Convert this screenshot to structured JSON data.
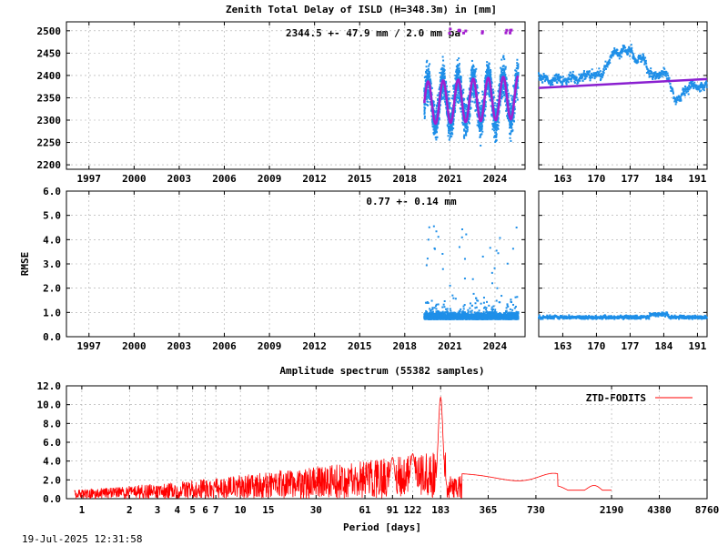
{
  "footer": {
    "timestamp": "19-Jul-2025 12:31:58"
  },
  "colors": {
    "points": "#1e8fe8",
    "model": "#a31fcf",
    "spectrum": "#ff0000",
    "trend": "#8a1fd0"
  },
  "chart_data": [
    {
      "id": "ztd",
      "type": "scatter",
      "title": "Zenith Total Delay of ISLD (H=348.3m) in [mm]",
      "annotation": "2344.5 +-  47.9 mm /  2.0 mm pa",
      "xlabel": "",
      "ylabel": "",
      "xlim": [
        1995.5,
        2026.0
      ],
      "ylim": [
        2190,
        2520
      ],
      "x_ticks": [
        "1997",
        "2000",
        "2003",
        "2006",
        "2009",
        "2012",
        "2015",
        "2018",
        "2021",
        "2024"
      ],
      "y_ticks": [
        "2200",
        "2250",
        "2300",
        "2350",
        "2400",
        "2450",
        "2500"
      ],
      "data_span": [
        2019.3,
        2025.55
      ],
      "seasonal": {
        "mean": 2344.5,
        "amplitude": 47.9,
        "trend_mm_per_year": 2.0,
        "period_years": 1.0
      },
      "grid": true
    },
    {
      "id": "ztd-zoom",
      "type": "scatter",
      "xlim": [
        158,
        193
      ],
      "ylim": [
        2190,
        2520
      ],
      "x_ticks": [
        "163",
        "170",
        "177",
        "184",
        "191"
      ],
      "trend_line": {
        "x": [
          158,
          193
        ],
        "y": [
          2372,
          2392
        ]
      },
      "grid": true
    },
    {
      "id": "rmse",
      "type": "scatter",
      "annotation": "0.77 +-  0.14 mm",
      "ylabel": "RMSE",
      "xlim": [
        1995.5,
        2026.0
      ],
      "ylim": [
        0.0,
        6.0
      ],
      "x_ticks": [
        "1997",
        "2000",
        "2003",
        "2006",
        "2009",
        "2012",
        "2015",
        "2018",
        "2021",
        "2024"
      ],
      "y_ticks": [
        "0.0",
        "1.0",
        "2.0",
        "3.0",
        "4.0",
        "5.0",
        "6.0"
      ],
      "data_span": [
        2019.3,
        2025.55
      ],
      "mean": 0.77,
      "sd": 0.14,
      "grid": true
    },
    {
      "id": "rmse-zoom",
      "type": "scatter",
      "xlim": [
        158,
        193
      ],
      "ylim": [
        0.0,
        6.0
      ],
      "x_ticks": [
        "163",
        "170",
        "177",
        "184",
        "191"
      ],
      "grid": true
    },
    {
      "id": "spectrum",
      "type": "line",
      "title": "Amplitude spectrum (55382 samples)",
      "xlabel": "Period [days]",
      "xscale": "log",
      "xlim": [
        0.8,
        8760
      ],
      "ylim": [
        0.0,
        12.0
      ],
      "x_ticks": [
        "1",
        "2",
        "3",
        "4",
        "5",
        "6",
        "7",
        "10",
        "15",
        "30",
        "61",
        "91",
        "122",
        "183",
        "365",
        "730",
        "2190",
        "4380",
        "8760"
      ],
      "y_ticks": [
        "0.0",
        "2.0",
        "4.0",
        "6.0",
        "8.0",
        "10.0",
        "12.0"
      ],
      "legend": {
        "label": "ZTD-FODITS",
        "position": "top-right"
      },
      "peaks": [
        {
          "period": 183,
          "amplitude": 10.8
        },
        {
          "period": 122,
          "amplitude": 4.8
        },
        {
          "period": 91,
          "amplitude": 4.4
        },
        {
          "period": 365,
          "amplitude": 2.1
        },
        {
          "period": 730,
          "amplitude": 2.6
        },
        {
          "period": 2190,
          "amplitude": 1.0
        }
      ],
      "grid": true
    }
  ]
}
